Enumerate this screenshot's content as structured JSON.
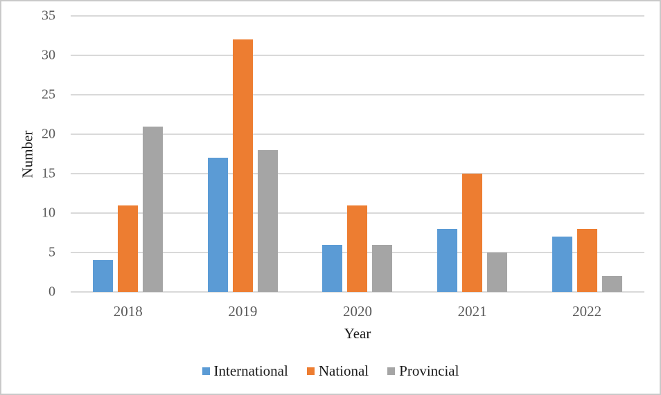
{
  "chart_data": {
    "type": "bar",
    "title": "",
    "categories": [
      "2018",
      "2019",
      "2020",
      "2021",
      "2022"
    ],
    "series": [
      {
        "name": "International",
        "color": "#5B9BD5",
        "values": [
          4,
          17,
          6,
          8,
          7
        ]
      },
      {
        "name": "National",
        "color": "#ED7D31",
        "values": [
          11,
          32,
          11,
          15,
          8
        ]
      },
      {
        "name": "Provincial",
        "color": "#A5A5A5",
        "values": [
          21,
          18,
          6,
          5,
          2
        ]
      }
    ],
    "xlabel": "Year",
    "ylabel": "Number",
    "ylim": [
      0,
      35
    ],
    "yticks": [
      0,
      5,
      10,
      15,
      20,
      25,
      30,
      35
    ],
    "grid": true,
    "legend_position": "bottom"
  },
  "colors": {
    "gridline": "#D9D9D9",
    "tick_label": "#595959",
    "axis_title": "#1A1A1A",
    "frame_border": "#C9C9C9",
    "background": "#FFFFFF"
  }
}
